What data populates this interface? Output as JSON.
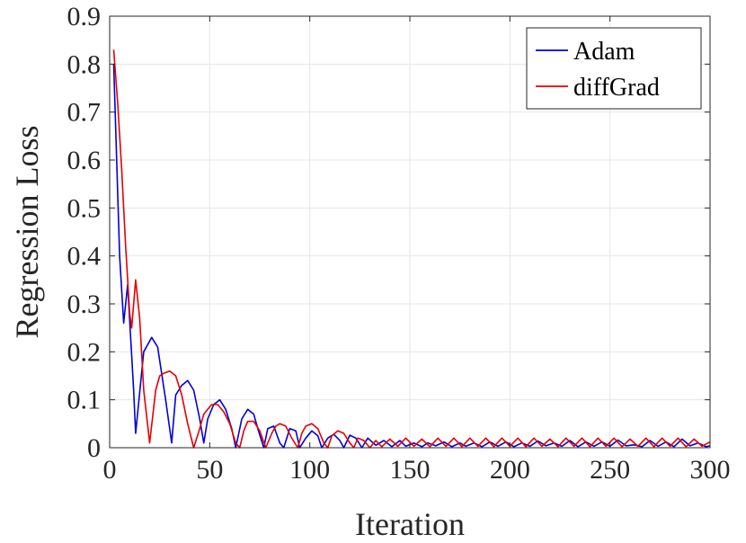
{
  "chart_data": {
    "type": "line",
    "title": "",
    "xlabel": "Iteration",
    "ylabel": "Regression Loss",
    "xlim": [
      0,
      300
    ],
    "ylim": [
      0,
      0.9
    ],
    "xticks": [
      0,
      50,
      100,
      150,
      200,
      250,
      300
    ],
    "yticks": [
      0,
      0.1,
      0.2,
      0.3,
      0.4,
      0.5,
      0.6,
      0.7,
      0.8,
      0.9
    ],
    "grid": true,
    "legend_location": "top-right",
    "series": [
      {
        "name": "Adam",
        "color": "#0000dd",
        "x": [
          2,
          5,
          7,
          9,
          12,
          13,
          17,
          21,
          24,
          28,
          31,
          33,
          36,
          39,
          42,
          45,
          47,
          49,
          52,
          55,
          58,
          61,
          63,
          66,
          69,
          72,
          74,
          77,
          79,
          82,
          85,
          87,
          90,
          93,
          95,
          98,
          101,
          104,
          106,
          109,
          112,
          115,
          117,
          120,
          123,
          126,
          129,
          133,
          137,
          141,
          145,
          148,
          152,
          156,
          159,
          163,
          167,
          171,
          175,
          178,
          182,
          186,
          190,
          194,
          198,
          202,
          206,
          210,
          214,
          218,
          222,
          226,
          230,
          234,
          238,
          242,
          246,
          250,
          254,
          258,
          262,
          266,
          270,
          274,
          278,
          282,
          286,
          290,
          294,
          298,
          300
        ],
        "y": [
          0.8,
          0.4,
          0.26,
          0.34,
          0.12,
          0.03,
          0.2,
          0.23,
          0.21,
          0.1,
          0.01,
          0.11,
          0.13,
          0.14,
          0.12,
          0.06,
          0.01,
          0.06,
          0.09,
          0.1,
          0.08,
          0.04,
          0.0,
          0.06,
          0.08,
          0.07,
          0.04,
          0.0,
          0.04,
          0.045,
          0.01,
          0.0,
          0.04,
          0.035,
          0.0,
          0.02,
          0.035,
          0.025,
          0.0,
          0.02,
          0.028,
          0.015,
          0.0,
          0.026,
          0.02,
          0.0,
          0.02,
          0.005,
          0.015,
          0.002,
          0.015,
          0.003,
          0.01,
          0.002,
          0.01,
          0.004,
          0.012,
          0.002,
          0.01,
          0.003,
          0.01,
          0.002,
          0.012,
          0.003,
          0.012,
          0.002,
          0.01,
          0.003,
          0.014,
          0.004,
          0.01,
          0.003,
          0.015,
          0.002,
          0.012,
          0.003,
          0.012,
          0.003,
          0.016,
          0.004,
          0.006,
          0.002,
          0.015,
          0.003,
          0.012,
          0.002,
          0.018,
          0.004,
          0.01,
          0.002,
          0.004
        ]
      },
      {
        "name": "diffGrad",
        "color": "#e60000",
        "x": [
          2,
          4,
          6,
          8,
          10,
          11,
          13,
          15,
          17,
          20,
          23,
          25,
          27,
          30,
          33,
          36,
          39,
          42,
          45,
          47,
          49,
          51,
          54,
          57,
          60,
          63,
          65,
          67,
          69,
          72,
          75,
          78,
          81,
          83,
          85,
          88,
          91,
          94,
          96,
          98,
          101,
          104,
          107,
          109,
          111,
          114,
          117,
          120,
          122,
          124,
          127,
          130,
          133,
          136,
          140,
          144,
          148,
          152,
          156,
          160,
          164,
          168,
          172,
          176,
          180,
          184,
          188,
          192,
          196,
          200,
          204,
          208,
          212,
          216,
          220,
          224,
          228,
          232,
          236,
          240,
          244,
          248,
          252,
          256,
          260,
          264,
          268,
          272,
          276,
          280,
          284,
          288,
          292,
          296,
          300
        ],
        "y": [
          0.83,
          0.72,
          0.58,
          0.42,
          0.28,
          0.25,
          0.35,
          0.27,
          0.12,
          0.01,
          0.12,
          0.15,
          0.155,
          0.16,
          0.15,
          0.11,
          0.05,
          0.0,
          0.04,
          0.07,
          0.08,
          0.09,
          0.09,
          0.075,
          0.05,
          0.01,
          0.0,
          0.035,
          0.055,
          0.055,
          0.035,
          0.0,
          0.03,
          0.045,
          0.05,
          0.045,
          0.02,
          0.0,
          0.03,
          0.045,
          0.05,
          0.04,
          0.01,
          0.0,
          0.025,
          0.035,
          0.03,
          0.01,
          0.0,
          0.02,
          0.015,
          0.0,
          0.015,
          0.002,
          0.018,
          0.003,
          0.02,
          0.003,
          0.018,
          0.002,
          0.02,
          0.003,
          0.02,
          0.002,
          0.02,
          0.003,
          0.02,
          0.002,
          0.02,
          0.003,
          0.02,
          0.002,
          0.02,
          0.003,
          0.018,
          0.002,
          0.02,
          0.003,
          0.02,
          0.002,
          0.02,
          0.003,
          0.02,
          0.002,
          0.018,
          0.003,
          0.02,
          0.002,
          0.02,
          0.003,
          0.02,
          0.002,
          0.018,
          0.003,
          0.012
        ]
      }
    ]
  }
}
